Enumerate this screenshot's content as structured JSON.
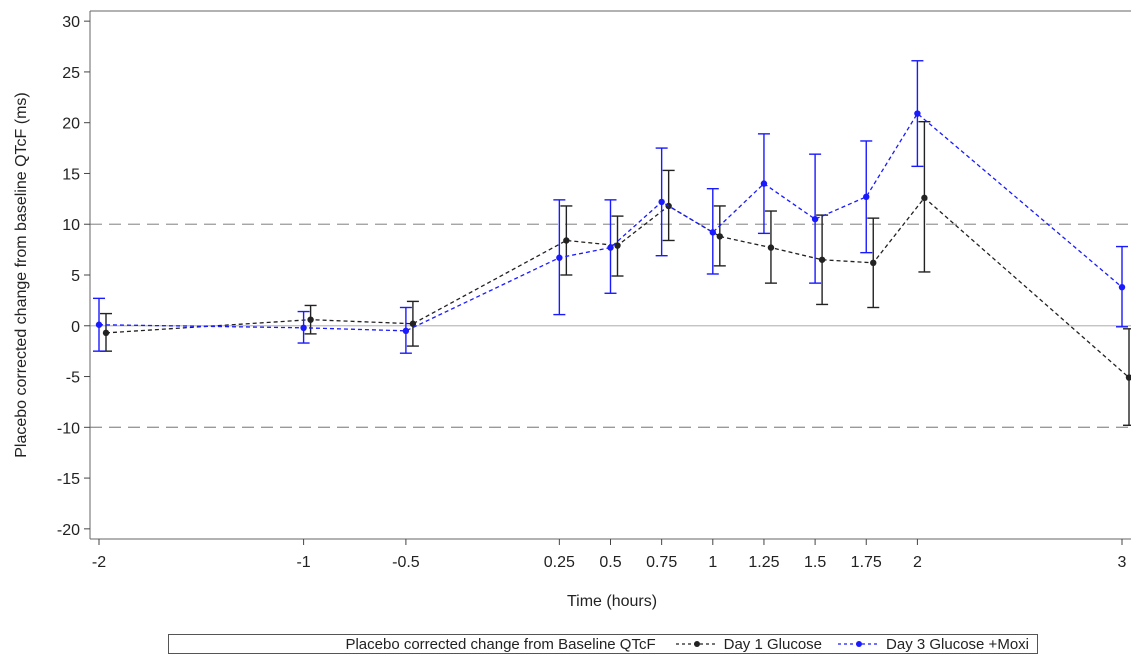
{
  "chart_data": {
    "type": "line",
    "title": "",
    "xlabel": "Time (hours)",
    "ylabel": "Placebo corrected change from baseline QTcF (ms)",
    "x_ticks": [
      {
        "pos": 0,
        "label": "-2"
      },
      {
        "pos": 1,
        "label": "-1"
      },
      {
        "pos": 1.5,
        "label": "-0.5"
      },
      {
        "pos": 2.25,
        "label": "0.25"
      },
      {
        "pos": 2.5,
        "label": "0.5"
      },
      {
        "pos": 2.75,
        "label": "0.75"
      },
      {
        "pos": 3,
        "label": "1"
      },
      {
        "pos": 3.25,
        "label": "1.25"
      },
      {
        "pos": 3.5,
        "label": "1.5"
      },
      {
        "pos": 3.75,
        "label": "1.75"
      },
      {
        "pos": 4,
        "label": "2"
      },
      {
        "pos": 5,
        "label": "3"
      }
    ],
    "ylim": [
      -21,
      31
    ],
    "y_ticks": [
      -20,
      -15,
      -10,
      -5,
      0,
      5,
      10,
      15,
      20,
      25,
      30
    ],
    "reference_lines": [
      {
        "y": 10,
        "style": "dashed",
        "color": "#999999"
      },
      {
        "y": -10,
        "style": "dashed",
        "color": "#999999"
      },
      {
        "y": 0,
        "style": "solid",
        "color": "#bbbbbb"
      }
    ],
    "legend_title": "Placebo corrected change from Baseline QTcF",
    "legend_position": "bottom",
    "series": [
      {
        "name": "Day 1 Glucose",
        "color": "#222222",
        "points": [
          {
            "x": -2,
            "y": -0.7,
            "lo": -2.5,
            "hi": 1.2
          },
          {
            "x": -1,
            "y": 0.6,
            "lo": -0.8,
            "hi": 2.0
          },
          {
            "x": -0.5,
            "y": 0.2,
            "lo": -2.0,
            "hi": 2.4
          },
          {
            "x": 0.25,
            "y": 8.4,
            "lo": 5.0,
            "hi": 11.8
          },
          {
            "x": 0.5,
            "y": 7.9,
            "lo": 4.9,
            "hi": 10.8
          },
          {
            "x": 0.75,
            "y": 11.8,
            "lo": 8.4,
            "hi": 15.3
          },
          {
            "x": 1,
            "y": 8.8,
            "lo": 5.9,
            "hi": 11.8
          },
          {
            "x": 1.25,
            "y": 7.7,
            "lo": 4.2,
            "hi": 11.3
          },
          {
            "x": 1.5,
            "y": 6.5,
            "lo": 2.1,
            "hi": 10.9
          },
          {
            "x": 1.75,
            "y": 6.2,
            "lo": 1.8,
            "hi": 10.6
          },
          {
            "x": 2,
            "y": 12.6,
            "lo": 5.3,
            "hi": 20.1
          },
          {
            "x": 3,
            "y": -5.1,
            "lo": -9.8,
            "hi": -0.3
          }
        ]
      },
      {
        "name": "Day 3 Glucose +Moxi",
        "color": "#1a1aff",
        "points": [
          {
            "x": -2,
            "y": 0.1,
            "lo": -2.5,
            "hi": 2.7
          },
          {
            "x": -1,
            "y": -0.2,
            "lo": -1.7,
            "hi": 1.4
          },
          {
            "x": -0.5,
            "y": -0.5,
            "lo": -2.7,
            "hi": 1.8
          },
          {
            "x": 0.25,
            "y": 6.7,
            "lo": 1.1,
            "hi": 12.4
          },
          {
            "x": 0.5,
            "y": 7.7,
            "lo": 3.2,
            "hi": 12.4
          },
          {
            "x": 0.75,
            "y": 12.2,
            "lo": 6.9,
            "hi": 17.5
          },
          {
            "x": 1,
            "y": 9.2,
            "lo": 5.1,
            "hi": 13.5
          },
          {
            "x": 1.25,
            "y": 14.0,
            "lo": 9.1,
            "hi": 18.9
          },
          {
            "x": 1.5,
            "y": 10.5,
            "lo": 4.2,
            "hi": 16.9
          },
          {
            "x": 1.75,
            "y": 12.7,
            "lo": 7.2,
            "hi": 18.2
          },
          {
            "x": 2,
            "y": 20.9,
            "lo": 15.7,
            "hi": 26.1
          },
          {
            "x": 3,
            "y": 3.8,
            "lo": -0.1,
            "hi": 7.8
          }
        ]
      }
    ]
  }
}
